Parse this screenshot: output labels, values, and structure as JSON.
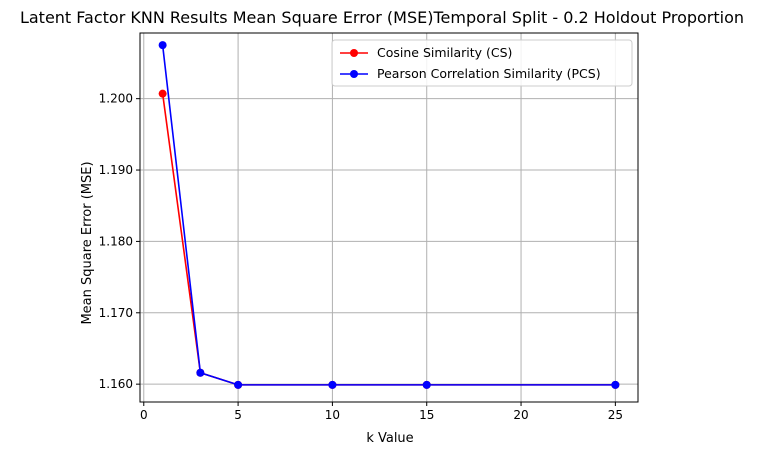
{
  "chart_data": {
    "type": "line",
    "title": "Latent Factor KNN Results Mean Square Error (MSE)Temporal Split - 0.2 Holdout Proportion",
    "xlabel": "k Value",
    "ylabel": "Mean Square Error (MSE)",
    "xlim": [
      -0.2,
      26.2
    ],
    "ylim": [
      1.1575,
      1.2092
    ],
    "xticks": [
      0,
      5,
      10,
      15,
      20,
      25
    ],
    "xtick_labels": [
      "0",
      "5",
      "10",
      "15",
      "20",
      "25"
    ],
    "yticks": [
      1.16,
      1.17,
      1.18,
      1.19,
      1.2
    ],
    "ytick_labels": [
      "1.160",
      "1.170",
      "1.180",
      "1.190",
      "1.200"
    ],
    "grid": true,
    "legend_position": "top-right",
    "x": [
      1,
      3,
      5,
      10,
      15,
      25
    ],
    "series": [
      {
        "name": "Cosine Similarity (CS)",
        "color": "#ff0000",
        "marker": "circle",
        "values": [
          1.2007,
          1.1616,
          1.1599,
          1.1599,
          1.1599,
          1.1599
        ]
      },
      {
        "name": "Pearson Correlation Similarity (PCS)",
        "color": "#0000ff",
        "marker": "circle",
        "values": [
          1.2075,
          1.1616,
          1.1599,
          1.1599,
          1.1599,
          1.1599
        ]
      }
    ]
  }
}
